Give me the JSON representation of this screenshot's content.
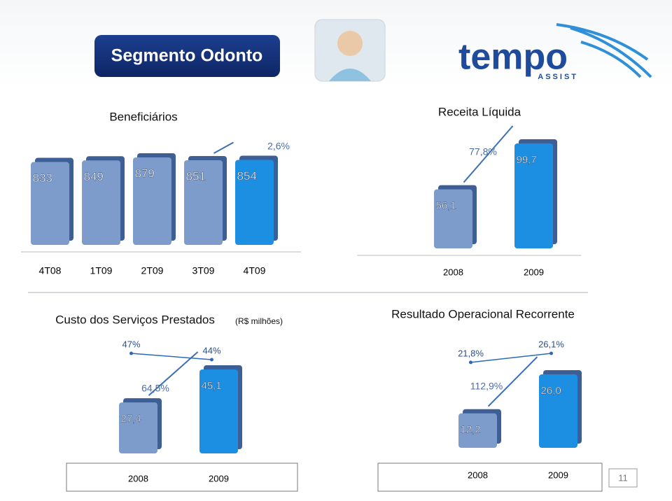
{
  "slide": {
    "title": "Segmento Odonto",
    "logo": "tempo",
    "logo_sub": "ASSIST",
    "page_number": "11"
  },
  "chart_data": [
    {
      "type": "bar",
      "title": "Beneficiários",
      "categories": [
        "4T08",
        "1T09",
        "2T09",
        "3T09",
        "4T09"
      ],
      "values": [
        833,
        849,
        879,
        851,
        854
      ],
      "colors": [
        "#7d9ccb",
        "#7d9ccb",
        "#7d9ccb",
        "#7d9ccb",
        "#1c8fe3"
      ],
      "growth_label": "2,6%"
    },
    {
      "type": "bar",
      "title": "Receita Líquida",
      "categories": [
        "2008",
        "2009"
      ],
      "values": [
        56.1,
        99.7
      ],
      "value_labels": [
        "56,1",
        "99,7"
      ],
      "colors": [
        "#7d9ccb",
        "#1c8fe3"
      ],
      "growth_label": "77,8%"
    },
    {
      "type": "bar",
      "title": "Custo dos Serviços Prestados",
      "subtitle": "(R$ milhões)",
      "categories": [
        "2008",
        "2009"
      ],
      "values": [
        27.4,
        45.1
      ],
      "value_labels": [
        "27,4",
        "45,1"
      ],
      "colors": [
        "#7d9ccb",
        "#1c8fe3"
      ],
      "growth_label": "64,5%",
      "line_values": [
        47,
        44
      ],
      "line_value_labels": [
        "47%",
        "44%"
      ]
    },
    {
      "type": "bar",
      "title": "Resultado Operacional Recorrente",
      "categories": [
        "2008",
        "2009"
      ],
      "values": [
        12.2,
        26.0
      ],
      "value_labels": [
        "12,2",
        "26,0"
      ],
      "colors": [
        "#7d9ccb",
        "#1c8fe3"
      ],
      "growth_label": "112,9%",
      "line_values": [
        21.8,
        26.1
      ],
      "line_value_labels": [
        "21,8%",
        "26,1%"
      ]
    }
  ]
}
